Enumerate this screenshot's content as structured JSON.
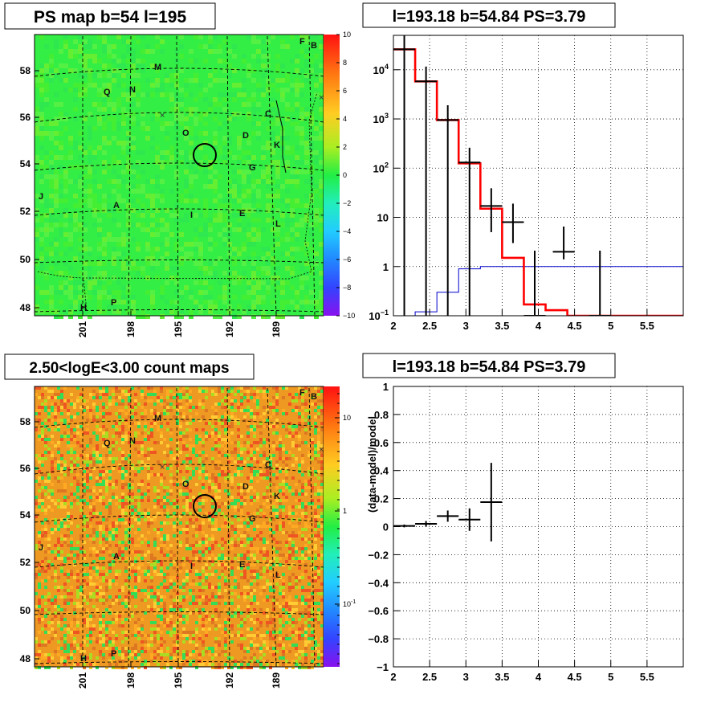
{
  "panels": {
    "top_left_title": "PS map b=54 l=195",
    "top_right_title": "l=193.18 b=54.84 PS=3.79",
    "bottom_left_title": "2.50<logE<3.00 count maps",
    "bottom_right_title": "l=193.18 b=54.84 PS=3.79"
  },
  "colors": {
    "ps_map_background": "#33ee44",
    "count_map_background": "#ee9922",
    "data_series": "#000000",
    "model_series": "#ff0000",
    "bkg_series": "#0000cc",
    "grid": "#000000"
  },
  "chart_data": [
    {
      "type": "heatmap",
      "title": "PS map b=54 l=195",
      "xlabel": "",
      "ylabel": "",
      "x_ticks": [
        "201",
        "198",
        "195",
        "192",
        "189"
      ],
      "y_ticks": [
        "48",
        "50",
        "52",
        "54",
        "56",
        "58"
      ],
      "source_labels": [
        "F",
        "B",
        "M",
        "Q",
        "N",
        "C",
        "O",
        "D",
        "K",
        "G",
        "J",
        "A",
        "I",
        "E",
        "L",
        "H",
        "P"
      ],
      "colorbar": {
        "scale": "linear",
        "min": -10,
        "max": 10,
        "ticks": [
          "10",
          "8",
          "6",
          "4",
          "2",
          "0",
          "−2",
          "−4",
          "−6",
          "−8",
          "−10"
        ]
      },
      "highlight_circle": {
        "l": 193.18,
        "b": 54.84
      }
    },
    {
      "type": "line",
      "title": "l=193.18 b=54.84 PS=3.79",
      "xlabel": "",
      "ylabel": "",
      "xlim": [
        2,
        6
      ],
      "ylim": [
        0.1,
        50000
      ],
      "y_scale": "log",
      "x_ticks": [
        "2",
        "2.5",
        "3",
        "3.5",
        "4",
        "4.5",
        "5",
        "5.5"
      ],
      "y_ticks": [
        {
          "value": 10000,
          "base": "10",
          "exp": "4"
        },
        {
          "value": 1000,
          "base": "10",
          "exp": "3"
        },
        {
          "value": 100,
          "base": "10",
          "exp": "2"
        },
        {
          "value": 10,
          "label": "10"
        },
        {
          "value": 1,
          "label": "1"
        },
        {
          "value": 0.1,
          "base": "10",
          "exp": "−1"
        }
      ],
      "grid": true,
      "series": [
        {
          "role": "data",
          "x": [
            2.15,
            2.45,
            2.75,
            3.05,
            3.35,
            3.65,
            3.95,
            4.35,
            4.85
          ],
          "y": [
            26000,
            5800,
            950,
            130,
            17,
            8,
            0.1,
            2,
            0.1
          ],
          "yerr_low": [
            26000,
            5800,
            950,
            130,
            12,
            5,
            0.1,
            0.6,
            0.1
          ],
          "yerr_high": [
            26000,
            5800,
            950,
            130,
            22,
            11,
            2,
            4.5,
            2
          ]
        },
        {
          "role": "model",
          "step_edges": [
            2,
            2.3,
            2.6,
            2.9,
            3.2,
            3.5,
            3.8,
            4.1,
            4.4,
            6
          ],
          "values": [
            26000,
            5800,
            950,
            125,
            15,
            1.5,
            0.17,
            0.13,
            0.1
          ]
        },
        {
          "role": "background",
          "step_edges": [
            2.15,
            2.3,
            2.6,
            2.9,
            3.2,
            6
          ],
          "values": [
            0.1,
            0.12,
            0.3,
            0.9,
            1.0
          ]
        }
      ]
    },
    {
      "type": "heatmap",
      "title": "2.50<logE<3.00 count maps",
      "xlabel": "",
      "ylabel": "",
      "x_ticks": [
        "201",
        "198",
        "195",
        "192",
        "189"
      ],
      "y_ticks": [
        "48",
        "50",
        "52",
        "54",
        "56",
        "58"
      ],
      "colorbar": {
        "scale": "log",
        "ticks": [
          {
            "label": "10"
          },
          {
            "label": "1"
          },
          {
            "base": "10",
            "exp": "-1"
          }
        ]
      }
    },
    {
      "type": "scatter",
      "title": "l=193.18 b=54.84 PS=3.79",
      "xlabel": "",
      "ylabel": "(data-model)/model",
      "xlim": [
        2,
        6
      ],
      "ylim": [
        -1,
        1
      ],
      "x_ticks": [
        "2",
        "2.5",
        "3",
        "3.5",
        "4",
        "4.5",
        "5",
        "5.5"
      ],
      "y_ticks": [
        "1",
        "0.8",
        "0.6",
        "0.4",
        "0.2",
        "0",
        "−0.2",
        "−0.4",
        "−0.6",
        "−0.8",
        "−1"
      ],
      "grid": true,
      "series": [
        {
          "x": [
            2.15,
            2.45,
            2.75,
            3.05,
            3.35
          ],
          "y": [
            0.005,
            0.02,
            0.075,
            0.05,
            0.175
          ],
          "xerr": [
            0.15,
            0.15,
            0.15,
            0.15,
            0.15
          ],
          "yerr": [
            0.01,
            0.02,
            0.04,
            0.08,
            0.28
          ]
        }
      ]
    }
  ]
}
